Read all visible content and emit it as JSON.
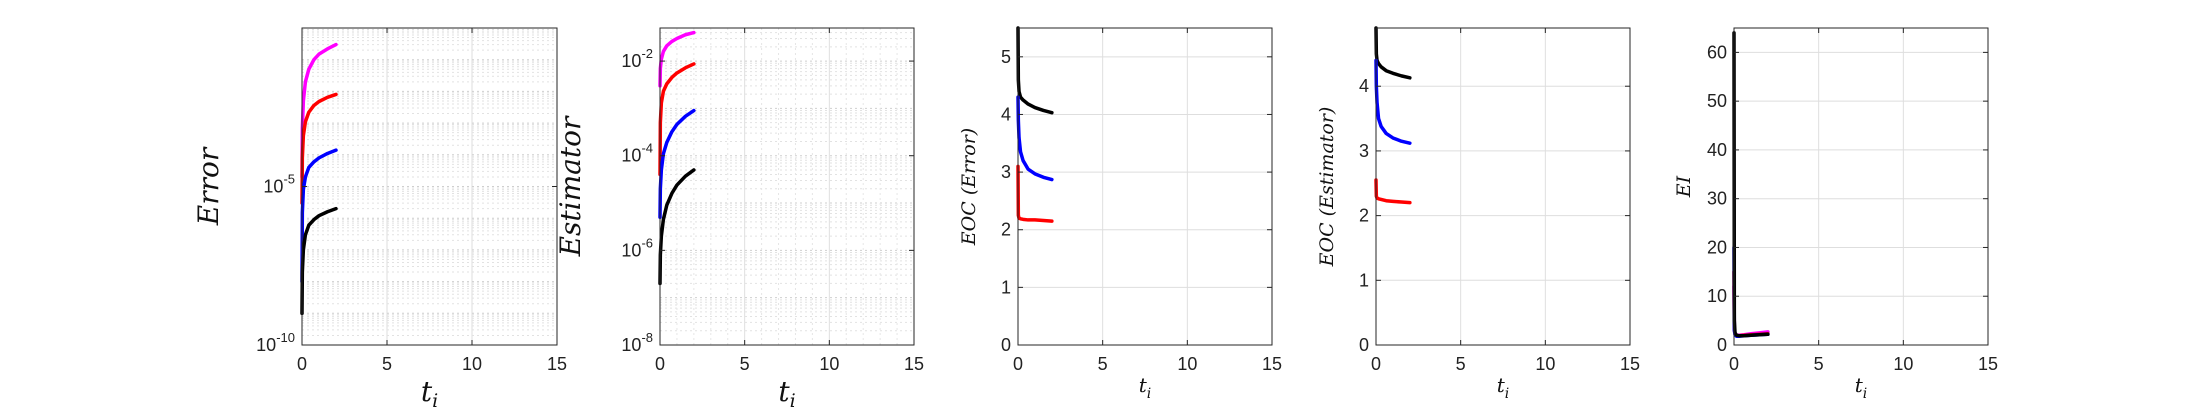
{
  "chart_data": [
    {
      "type": "line",
      "xlabel": "t_i",
      "ylabel": "Error",
      "yscale": "log",
      "xlim": [
        0,
        15
      ],
      "ylim": [
        1e-10,
        1
      ],
      "xticks": [
        0,
        5,
        10,
        15
      ],
      "xtick_labels": [
        "0",
        "5",
        "10",
        "15"
      ],
      "yticks": [
        1e-10,
        1e-05
      ],
      "ytick_labels": [
        "10^-10",
        "10^-5"
      ],
      "grid": "on (major and minor, dotted)",
      "legend": "none",
      "series": [
        {
          "color": "#ff00ff",
          "x": [
            0,
            0.02,
            0.08,
            0.2,
            0.4,
            0.7,
            1.0,
            1.5,
            2.0
          ],
          "values": [
            2e-05,
            0.0007,
            0.005,
            0.02,
            0.05,
            0.1,
            0.15,
            0.22,
            0.3
          ]
        },
        {
          "color": "#ff0000",
          "x": [
            0,
            0.02,
            0.08,
            0.2,
            0.4,
            0.7,
            1.0,
            1.5,
            2.0
          ],
          "values": [
            3e-06,
            8e-05,
            0.0004,
            0.0011,
            0.0022,
            0.0036,
            0.0048,
            0.0065,
            0.008
          ]
        },
        {
          "color": "#0000ff",
          "x": [
            0,
            0.02,
            0.08,
            0.2,
            0.4,
            0.7,
            1.0,
            1.5,
            2.0
          ],
          "values": [
            1e-08,
            1.5e-06,
            8e-06,
            2e-05,
            4e-05,
            6e-05,
            8e-05,
            0.00011,
            0.00014
          ]
        },
        {
          "color": "#000000",
          "x": [
            0,
            0.02,
            0.08,
            0.2,
            0.4,
            0.7,
            1.0,
            1.5,
            2.0
          ],
          "values": [
            1e-09,
            2e-08,
            1e-07,
            3e-07,
            6e-07,
            9e-07,
            1.2e-06,
            1.6e-06,
            2e-06
          ]
        }
      ]
    },
    {
      "type": "line",
      "xlabel": "t_i",
      "ylabel": "Estimator",
      "yscale": "log",
      "xlim": [
        0,
        15
      ],
      "ylim": [
        1e-08,
        0.05
      ],
      "xticks": [
        0,
        5,
        10,
        15
      ],
      "xtick_labels": [
        "0",
        "5",
        "10",
        "15"
      ],
      "yticks": [
        1e-08,
        1e-06,
        0.0001,
        0.01
      ],
      "ytick_labels": [
        "10^-8",
        "10^-6",
        "10^-4",
        "10^-2"
      ],
      "grid": "on (major and minor, dotted)",
      "legend": "none",
      "series": [
        {
          "color": "#ff00ff",
          "x": [
            0,
            0.02,
            0.08,
            0.2,
            0.4,
            0.7,
            1.0,
            1.5,
            2.0
          ],
          "values": [
            0.003,
            0.007,
            0.011,
            0.016,
            0.021,
            0.026,
            0.03,
            0.036,
            0.04
          ]
        },
        {
          "color": "#ff0000",
          "x": [
            0,
            0.02,
            0.08,
            0.2,
            0.4,
            0.7,
            1.0,
            1.5,
            2.0
          ],
          "values": [
            4e-05,
            0.0005,
            0.0013,
            0.0023,
            0.0033,
            0.0045,
            0.0056,
            0.0072,
            0.0087
          ]
        },
        {
          "color": "#0000ff",
          "x": [
            0,
            0.02,
            0.08,
            0.2,
            0.4,
            0.7,
            1.0,
            1.5,
            2.0
          ],
          "values": [
            5e-06,
            2e-05,
            5e-05,
            0.00011,
            0.00019,
            0.00032,
            0.00046,
            0.00068,
            0.0009
          ]
        },
        {
          "color": "#000000",
          "x": [
            0,
            0.02,
            0.08,
            0.2,
            0.4,
            0.7,
            1.0,
            1.5,
            2.0
          ],
          "values": [
            2e-07,
            8e-07,
            2e-06,
            4.5e-06,
            9e-06,
            1.6e-05,
            2.4e-05,
            3.7e-05,
            5e-05
          ]
        }
      ]
    },
    {
      "type": "line",
      "xlabel": "t_i",
      "ylabel": "EOC (Error)",
      "yscale": "linear",
      "xlim": [
        0,
        15
      ],
      "ylim": [
        0,
        5.5
      ],
      "xticks": [
        0,
        5,
        10,
        15
      ],
      "xtick_labels": [
        "0",
        "5",
        "10",
        "15"
      ],
      "yticks": [
        0,
        1,
        2,
        3,
        4,
        5
      ],
      "ytick_labels": [
        "0",
        "1",
        "2",
        "3",
        "4",
        "5"
      ],
      "grid": "on",
      "legend": "none",
      "series": [
        {
          "color": "#000000",
          "x": [
            0,
            0.02,
            0.06,
            0.15,
            0.3,
            0.6,
            1.0,
            1.5,
            2.0
          ],
          "values": [
            5.5,
            4.6,
            4.4,
            4.3,
            4.25,
            4.18,
            4.12,
            4.07,
            4.03
          ]
        },
        {
          "color": "#0000ff",
          "x": [
            0,
            0.02,
            0.06,
            0.15,
            0.3,
            0.6,
            1.0,
            1.5,
            2.0
          ],
          "values": [
            4.3,
            3.9,
            3.6,
            3.35,
            3.2,
            3.05,
            2.97,
            2.91,
            2.87
          ]
        },
        {
          "color": "#ff0000",
          "x": [
            0,
            0.02,
            0.06,
            0.15,
            0.3,
            0.6,
            1.0,
            1.5,
            2.0
          ],
          "values": [
            3.1,
            2.25,
            2.2,
            2.19,
            2.18,
            2.17,
            2.17,
            2.16,
            2.15
          ]
        }
      ]
    },
    {
      "type": "line",
      "xlabel": "t_i",
      "ylabel": "EOC (Estimator)",
      "yscale": "linear",
      "xlim": [
        0,
        15
      ],
      "ylim": [
        0,
        4.9
      ],
      "xticks": [
        0,
        5,
        10,
        15
      ],
      "xtick_labels": [
        "0",
        "5",
        "10",
        "15"
      ],
      "yticks": [
        0,
        1,
        2,
        3,
        4
      ],
      "ytick_labels": [
        "0",
        "1",
        "2",
        "3",
        "4"
      ],
      "grid": "on",
      "legend": "none",
      "series": [
        {
          "color": "#000000",
          "x": [
            0,
            0.02,
            0.06,
            0.15,
            0.3,
            0.6,
            1.0,
            1.5,
            2.0
          ],
          "values": [
            4.9,
            4.5,
            4.4,
            4.35,
            4.3,
            4.24,
            4.2,
            4.16,
            4.13
          ]
        },
        {
          "color": "#0000ff",
          "x": [
            0,
            0.02,
            0.06,
            0.15,
            0.3,
            0.6,
            1.0,
            1.5,
            2.0
          ],
          "values": [
            4.4,
            4.0,
            3.75,
            3.5,
            3.38,
            3.27,
            3.2,
            3.15,
            3.12
          ]
        },
        {
          "color": "#ff0000",
          "x": [
            0,
            0.02,
            0.06,
            0.15,
            0.3,
            0.6,
            1.0,
            1.5,
            2.0
          ],
          "values": [
            2.55,
            2.3,
            2.27,
            2.26,
            2.25,
            2.23,
            2.22,
            2.21,
            2.2
          ]
        }
      ]
    },
    {
      "type": "line",
      "xlabel": "t_i",
      "ylabel": "EI",
      "yscale": "linear",
      "xlim": [
        0,
        15
      ],
      "ylim": [
        0,
        65
      ],
      "xticks": [
        0,
        5,
        10,
        15
      ],
      "xtick_labels": [
        "0",
        "5",
        "10",
        "15"
      ],
      "yticks": [
        0,
        10,
        20,
        30,
        40,
        50,
        60
      ],
      "ytick_labels": [
        "0",
        "10",
        "20",
        "30",
        "40",
        "50",
        "60"
      ],
      "grid": "on",
      "legend": "none",
      "series": [
        {
          "color": "#ff00ff",
          "x": [
            0,
            0.02,
            0.06,
            0.15,
            0.3,
            0.6,
            1.0,
            1.5,
            2.0
          ],
          "values": [
            12,
            3.5,
            2.4,
            2.0,
            2.0,
            2.1,
            2.3,
            2.5,
            2.7
          ]
        },
        {
          "color": "#ff0000",
          "x": [
            0,
            0.02,
            0.06,
            0.15,
            0.3,
            0.6,
            1.0,
            1.5,
            2.0
          ],
          "values": [
            15,
            3.2,
            2.2,
            1.9,
            1.9,
            2.0,
            2.1,
            2.2,
            2.3
          ]
        },
        {
          "color": "#0000ff",
          "x": [
            0,
            0.02,
            0.06,
            0.15,
            0.3,
            0.6,
            1.0,
            1.5,
            2.0
          ],
          "values": [
            20,
            3.0,
            2.1,
            1.8,
            1.8,
            1.9,
            2.0,
            2.1,
            2.2
          ]
        },
        {
          "color": "#000000",
          "x": [
            0,
            0.02,
            0.06,
            0.15,
            0.3,
            0.6,
            1.0,
            1.5,
            2.0
          ],
          "values": [
            64,
            5.0,
            2.5,
            2.0,
            1.9,
            1.9,
            2.0,
            2.1,
            2.2
          ]
        }
      ]
    }
  ]
}
